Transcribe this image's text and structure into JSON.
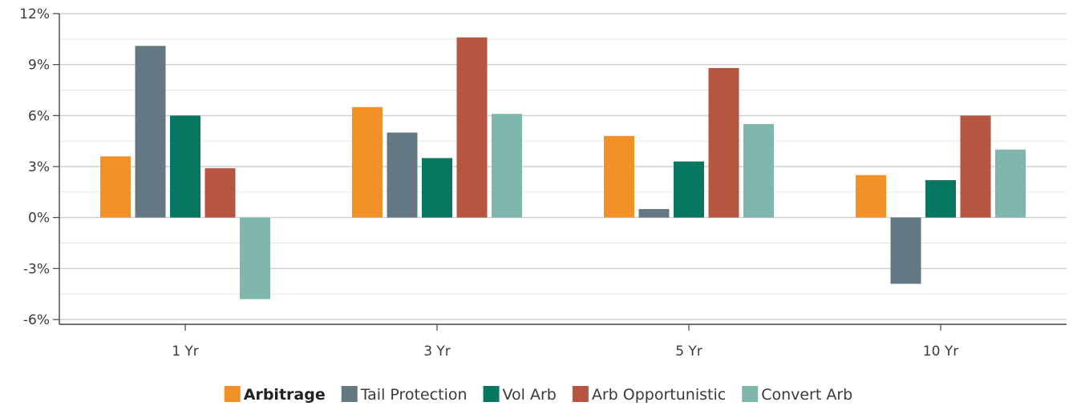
{
  "chart_data": {
    "type": "bar",
    "categories": [
      "1 Yr",
      "3 Yr",
      "5 Yr",
      "10 Yr"
    ],
    "series": [
      {
        "name": "Arbitrage",
        "color": "#f39129",
        "values": [
          3.6,
          6.5,
          4.8,
          2.5
        ]
      },
      {
        "name": "Tail Protection",
        "color": "#647883",
        "values": [
          10.1,
          5.0,
          0.5,
          -3.9
        ]
      },
      {
        "name": "Vol Arb",
        "color": "#077761",
        "values": [
          6.0,
          3.5,
          3.3,
          2.2
        ]
      },
      {
        "name": "Arb Opportunistic",
        "color": "#b65540",
        "values": [
          2.9,
          10.6,
          8.8,
          6.0
        ]
      },
      {
        "name": "Convert Arb",
        "color": "#7fb7ad",
        "values": [
          -4.8,
          6.1,
          5.5,
          4.0
        ]
      }
    ],
    "y_ticks": [
      12,
      9,
      6,
      3,
      0,
      -3,
      -6
    ],
    "y_tick_labels": [
      "12%",
      "9%",
      "6%",
      "3%",
      "0%",
      "-3%",
      "-6%"
    ],
    "ylim": [
      -6,
      12
    ],
    "grid": true,
    "legend_position": "bottom-center",
    "legend_bold_series": "Arbitrage"
  }
}
